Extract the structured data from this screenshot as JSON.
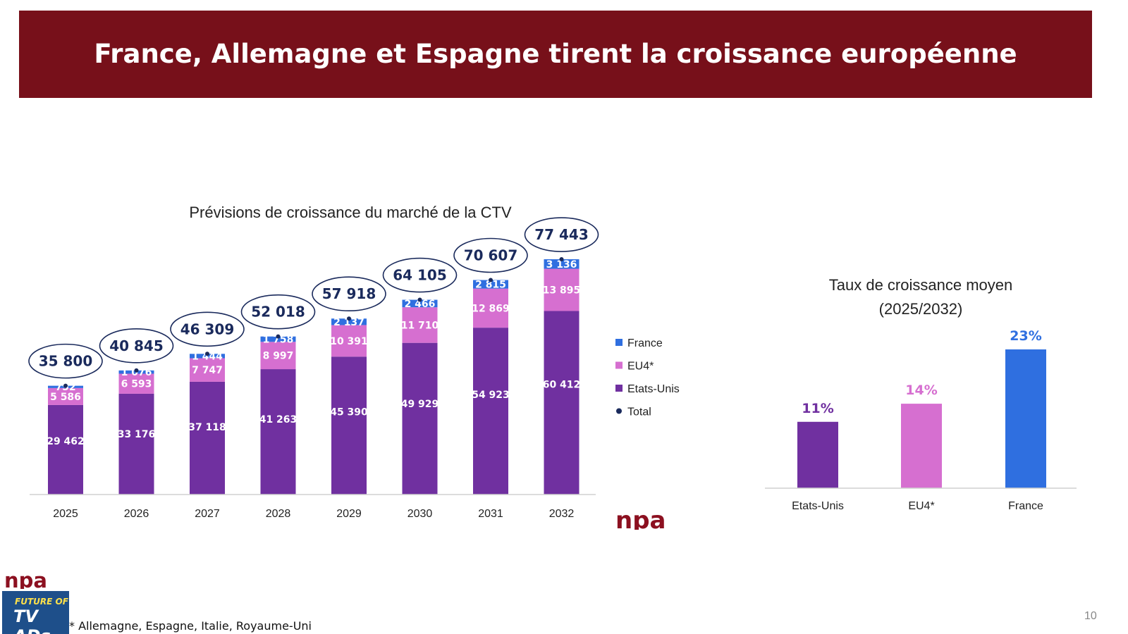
{
  "header": {
    "title": "France, Allemagne et Espagne tirent la croissance européenne"
  },
  "footnote": "* Allemagne, Espagne, Italie, Royaume-Uni",
  "page_number": "10",
  "logo": {
    "text": "npa",
    "color": "#8c1020"
  },
  "badge": {
    "line1": "FUTURE OF",
    "line2": "TV ADs"
  },
  "colors": {
    "france": "#2f6fe0",
    "eu4": "#d66fd0",
    "us": "#7030a0",
    "total": "#1a2a5c",
    "banner": "#77101a"
  },
  "chart_data": [
    {
      "type": "bar",
      "stacked": true,
      "title": "Prévisions de croissance du marché de la CTV",
      "categories": [
        "2025",
        "2026",
        "2027",
        "2028",
        "2029",
        "2030",
        "2031",
        "2032"
      ],
      "series": [
        {
          "name": "Etats-Unis",
          "values": [
            29462,
            33176,
            37118,
            41263,
            45390,
            49929,
            54923,
            60412
          ],
          "labels": [
            "29 462",
            "33 176",
            "37 118",
            "41 263",
            "45 390",
            "49 929",
            "54 923",
            "60 412"
          ]
        },
        {
          "name": "EU4*",
          "values": [
            5586,
            6593,
            7747,
            8997,
            10391,
            11710,
            12869,
            13895
          ],
          "labels": [
            "5 586",
            "6 593",
            "7 747",
            "8 997",
            "10 391",
            "11 710",
            "12 869",
            "13 895"
          ]
        },
        {
          "name": "France",
          "values": [
            752,
            1076,
            1444,
            1758,
            2137,
            2466,
            2815,
            3136
          ],
          "labels": [
            "752",
            "1 076",
            "1 444",
            "1 758",
            "2 137",
            "2 466",
            "2 815",
            "3 136"
          ]
        }
      ],
      "totals": {
        "name": "Total",
        "values": [
          35800,
          40845,
          46309,
          52018,
          57918,
          64105,
          70607,
          77443
        ],
        "labels": [
          "35 800",
          "40 845",
          "46 309",
          "52 018",
          "57 918",
          "64 105",
          "70 607",
          "77 443"
        ]
      },
      "legend": [
        "France",
        "EU4*",
        "Etats-Unis",
        "Total"
      ],
      "legend_position": "right",
      "grid": false,
      "ylim": [
        0,
        80000
      ]
    },
    {
      "type": "bar",
      "title_lines": [
        "Taux de croissance moyen",
        "(2025/2032)"
      ],
      "categories": [
        "Etats-Unis",
        "EU4*",
        "France"
      ],
      "values": [
        11,
        14,
        23
      ],
      "value_labels": [
        "11%",
        "14%",
        "23%"
      ],
      "colors": [
        "#7030a0",
        "#d66fd0",
        "#2f6fe0"
      ],
      "ylim": [
        0,
        25
      ],
      "grid": false
    }
  ]
}
